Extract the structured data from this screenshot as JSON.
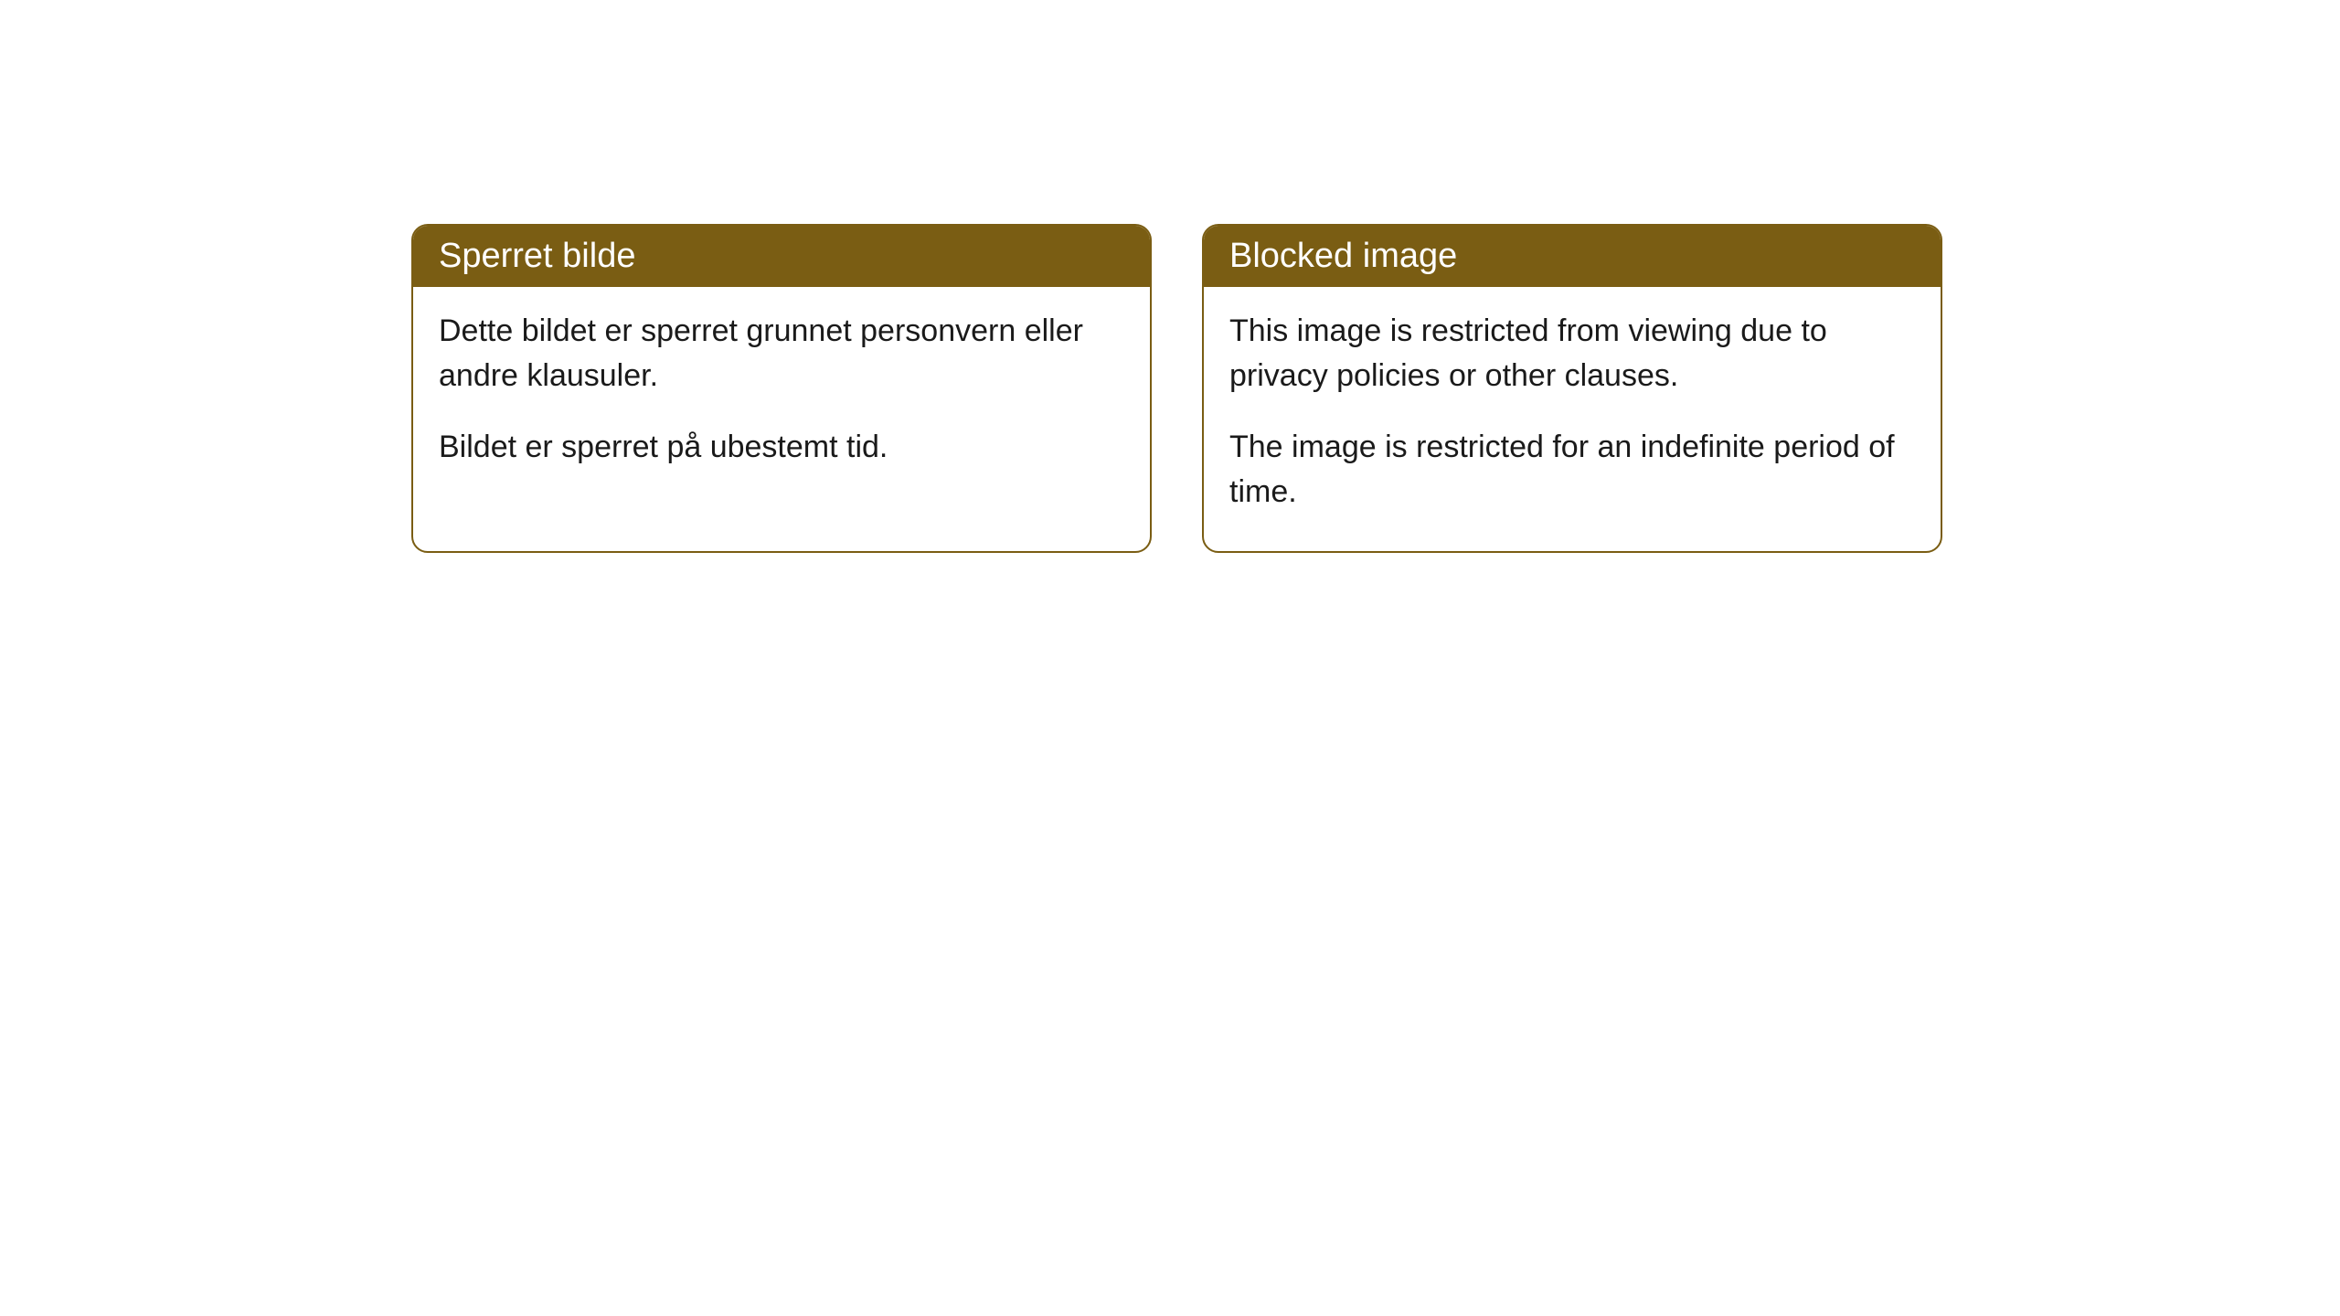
{
  "cards": [
    {
      "title": "Sperret bilde",
      "paragraph1": "Dette bildet er sperret grunnet personvern eller andre klausuler.",
      "paragraph2": "Bildet er sperret på ubestemt tid."
    },
    {
      "title": "Blocked image",
      "paragraph1": "This image is restricted from viewing due to privacy policies or other clauses.",
      "paragraph2": "The image is restricted for an indefinite period of time."
    }
  ],
  "styling": {
    "header_background_color": "#7a5d13",
    "header_text_color": "#ffffff",
    "border_color": "#7a5d13",
    "body_text_color": "#1a1a1a",
    "card_background_color": "#ffffff",
    "border_radius": 18,
    "header_fontsize": 38,
    "body_fontsize": 34
  }
}
